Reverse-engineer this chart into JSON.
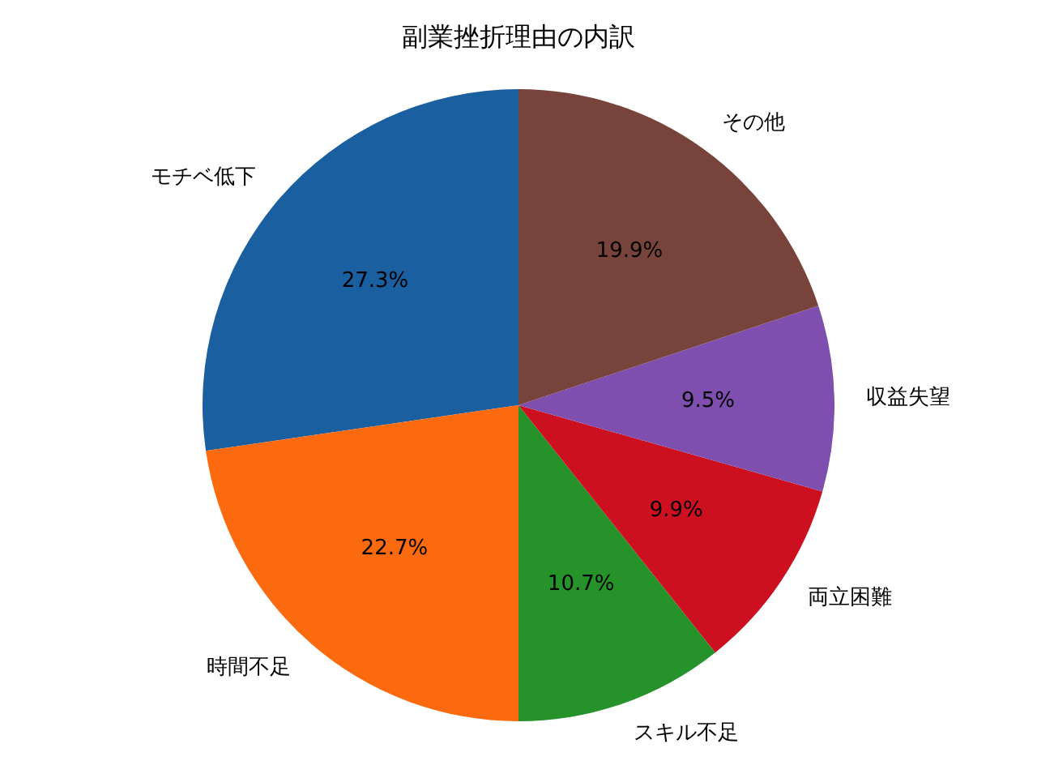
{
  "chart_data": {
    "type": "pie",
    "title": "副業挫折理由の内訳",
    "categories": [
      "モチベ低下",
      "時間不足",
      "スキル不足",
      "両立困難",
      "収益失望",
      "その他"
    ],
    "values": [
      27.3,
      22.7,
      10.7,
      9.9,
      9.5,
      19.9
    ],
    "colors": [
      "#1a5fa0",
      "#fc6a10",
      "#26922a",
      "#cc1020",
      "#7f4fb0",
      "#78433a"
    ],
    "value_labels": [
      "27.3%",
      "22.7%",
      "10.7%",
      "9.9%",
      "9.5%",
      "19.9%"
    ]
  }
}
